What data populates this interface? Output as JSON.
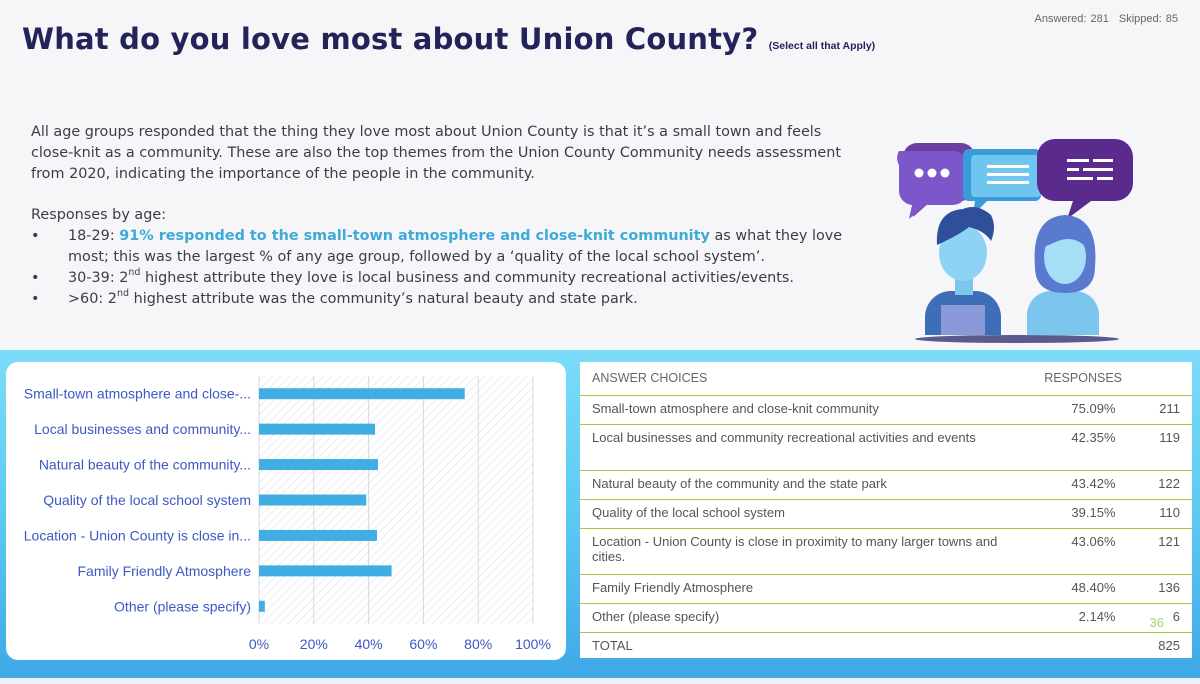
{
  "header": {
    "title": "What do you love most about Union County?",
    "subtitle": "(Select all that Apply)",
    "answered": "Answered: 281",
    "skipped": "Skipped: 85"
  },
  "body": {
    "intro": "All age groups responded that the thing they love most about Union County is that it’s a small town and feels close-knit as a community. These are also the top themes from the Union County Community needs assessment from 2020, indicating the importance of the people in the community.",
    "responses_heading": "Responses by age:",
    "bullets": [
      {
        "prefix": "18-29: ",
        "highlight": "91% responded to the small-town atmosphere and close-knit community",
        "rest": " as what they love most; this was the largest % of any age group, followed by a ‘quality of the local school system’."
      },
      {
        "prefix": "30-39: 2",
        "sup": "nd",
        "rest": " highest attribute they love is local business and community recreational activities/events."
      },
      {
        "prefix": ">60: 2",
        "sup": "nd",
        "rest": " highest attribute was the community’s natural beauty and state park."
      }
    ],
    "bullet_glyph": "•"
  },
  "chart_data": {
    "type": "bar",
    "orientation": "horizontal",
    "categories": [
      "Small-town atmosphere and close-...",
      "Local businesses and community...",
      "Natural beauty of the community...",
      "Quality of the local school system",
      "Location - Union County is close in...",
      "Family Friendly Atmosphere",
      "Other (please specify)"
    ],
    "values": [
      75.09,
      42.35,
      43.42,
      39.15,
      43.06,
      48.4,
      2.14
    ],
    "x_ticks": [
      "0%",
      "20%",
      "40%",
      "60%",
      "80%",
      "100%"
    ],
    "xlim": [
      0,
      100
    ],
    "grid": true,
    "bar_color": "#41aee3"
  },
  "table": {
    "headers": {
      "choices": "ANSWER CHOICES",
      "responses": "RESPONSES"
    },
    "rows": [
      {
        "choice": "Small-town atmosphere and close-knit community",
        "percent": "75.09%",
        "count": "211"
      },
      {
        "choice": "Local businesses and community recreational activities and events",
        "percent": "42.35%",
        "count": "119"
      },
      {
        "choice": "Natural beauty of the community and the state park",
        "percent": "43.42%",
        "count": "122"
      },
      {
        "choice": "Quality of the local school system",
        "percent": "39.15%",
        "count": "110"
      },
      {
        "choice": "Location - Union County is close in proximity to many larger towns and cities.",
        "percent": "43.06%",
        "count": "121"
      },
      {
        "choice": "Family Friendly Atmosphere",
        "percent": "48.40%",
        "count": "136"
      },
      {
        "choice": "Other (please specify)",
        "percent": "2.14%",
        "count": "6"
      }
    ],
    "total_label": "TOTAL",
    "total_count": "825"
  },
  "page_number": "36",
  "colors": {
    "title": "#23235a",
    "highlight": "#3eaad8",
    "table_rule": "#9ccc4a",
    "band_top": "#7bdcf8",
    "band_bottom": "#3ea8e8"
  }
}
